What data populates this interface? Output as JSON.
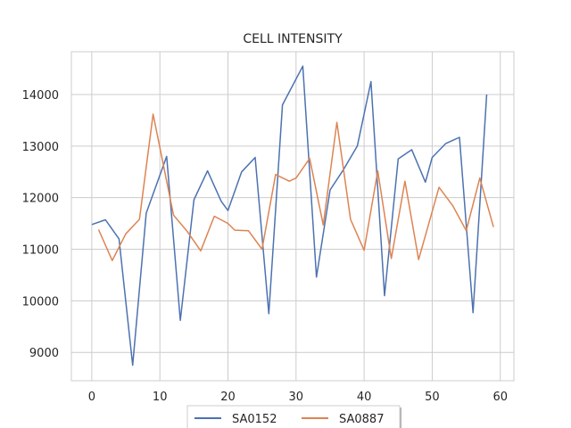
{
  "chart_data": {
    "type": "line",
    "title": "CELL INTENSITY",
    "xlabel": "",
    "ylabel": "",
    "xlim": [
      -3,
      62
    ],
    "ylim": [
      8450,
      14830
    ],
    "xticks": [
      0,
      10,
      20,
      30,
      40,
      50,
      60
    ],
    "yticks": [
      9000,
      10000,
      11000,
      12000,
      13000,
      14000
    ],
    "grid": true,
    "legend": "bottom-center",
    "series": [
      {
        "name": "SA0152",
        "color": "#4c72b0",
        "x": [
          0,
          2,
          4,
          6,
          8,
          11,
          13,
          15,
          17,
          19,
          20,
          22,
          24,
          26,
          28,
          31,
          33,
          35,
          37,
          39,
          41,
          43,
          45,
          47,
          49,
          50,
          52,
          54,
          56,
          58
        ],
        "y": [
          11480,
          11570,
          11200,
          8750,
          11700,
          12800,
          9620,
          11960,
          12520,
          11930,
          11750,
          12500,
          12780,
          9750,
          13800,
          14550,
          10460,
          12150,
          12550,
          13000,
          14250,
          10100,
          12750,
          12930,
          12300,
          12780,
          13050,
          13170,
          9770,
          14000
        ]
      },
      {
        "name": "SA0887",
        "color": "#dd8452",
        "x": [
          1,
          3,
          5,
          7,
          9,
          12,
          14,
          16,
          18,
          20,
          21,
          23,
          25,
          27,
          29,
          30,
          32,
          34,
          36,
          38,
          40,
          42,
          44,
          46,
          48,
          51,
          53,
          55,
          57,
          59
        ],
        "y": [
          11380,
          10780,
          11300,
          11580,
          13620,
          11660,
          11350,
          10970,
          11640,
          11500,
          11370,
          11360,
          11000,
          12450,
          12320,
          12380,
          12760,
          11470,
          13460,
          11580,
          10980,
          12520,
          10820,
          12320,
          10800,
          12200,
          11850,
          11360,
          12380,
          11430
        ]
      }
    ]
  }
}
